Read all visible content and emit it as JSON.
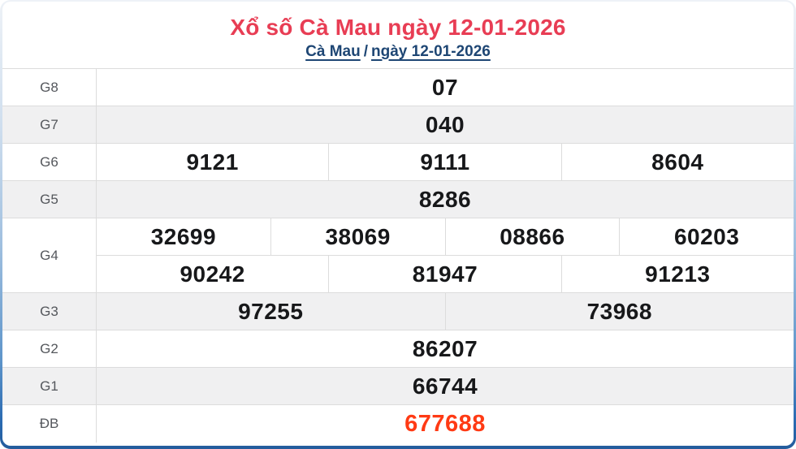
{
  "header": {
    "title": "Xổ số Cà Mau ngày 12-01-2026",
    "breadcrumb": {
      "province_link": "Cà Mau",
      "separator": "/",
      "date_link": "ngày 12-01-2026"
    }
  },
  "colors": {
    "title_red": "#e83d54",
    "link_navy": "#1e4674",
    "special_red": "#ff3a14",
    "row_alt_bg": "#f0f0f1",
    "cell_border": "#dcdcdc",
    "num_color": "#17181a",
    "label_color": "#54575c",
    "frame_blue_dark": "#245c9c",
    "frame_blue_light": "#eef2f7"
  },
  "table": {
    "rows": [
      {
        "label": "G8",
        "cells": [
          "07"
        ]
      },
      {
        "label": "G7",
        "cells": [
          "040"
        ]
      },
      {
        "label": "G6",
        "cells": [
          "9121",
          "9111",
          "8604"
        ]
      },
      {
        "label": "G5",
        "cells": [
          "8286"
        ]
      },
      {
        "label": "G4",
        "cells_row1": [
          "32699",
          "38069",
          "08866",
          "60203"
        ],
        "cells_row2": [
          "90242",
          "81947",
          "91213"
        ]
      },
      {
        "label": "G3",
        "cells": [
          "97255",
          "73968"
        ]
      },
      {
        "label": "G2",
        "cells": [
          "86207"
        ]
      },
      {
        "label": "G1",
        "cells": [
          "66744"
        ]
      },
      {
        "label": "ĐB",
        "cells": [
          "677688"
        ],
        "special": true
      }
    ]
  }
}
